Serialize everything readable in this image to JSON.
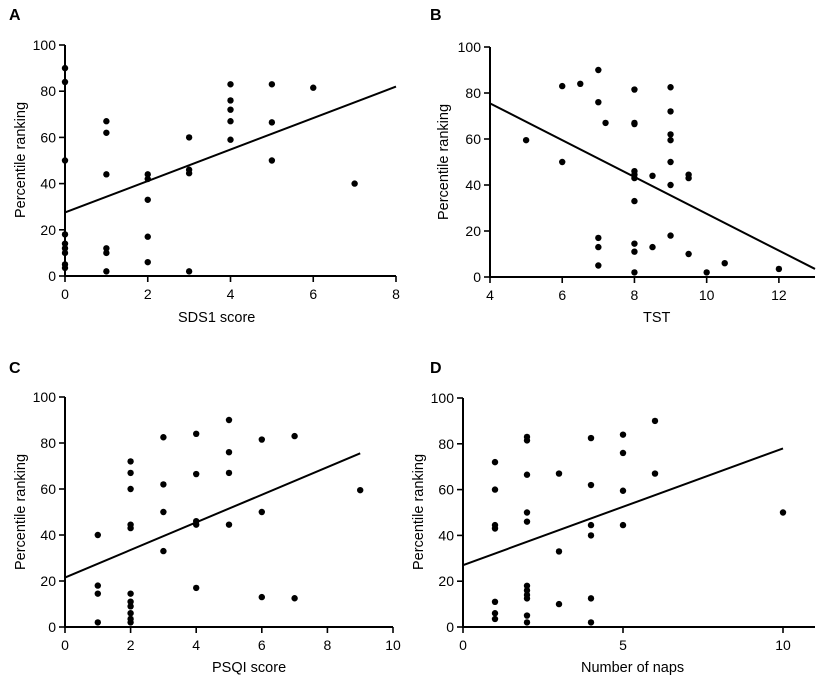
{
  "colors": {
    "ink": "#000000",
    "background": "#ffffff"
  },
  "chart_data": [
    {
      "type": "scatter",
      "panel": "A",
      "xlabel": "SDS1 score",
      "ylabel": "Percentile ranking",
      "xlim": [
        0,
        8
      ],
      "ylim": [
        0,
        100
      ],
      "xticks": [
        0,
        2,
        4,
        6,
        8
      ],
      "yticks": [
        0,
        20,
        40,
        60,
        80,
        100
      ],
      "grid": false,
      "trendline": {
        "x": [
          0,
          8
        ],
        "y": [
          27.5,
          82
        ]
      },
      "points": [
        [
          0,
          90
        ],
        [
          0,
          84
        ],
        [
          0,
          50
        ],
        [
          0,
          18
        ],
        [
          0,
          14
        ],
        [
          0,
          12
        ],
        [
          0,
          10
        ],
        [
          0,
          5
        ],
        [
          0,
          3.5
        ],
        [
          1,
          67
        ],
        [
          1,
          62
        ],
        [
          1,
          44
        ],
        [
          1,
          12
        ],
        [
          1,
          10
        ],
        [
          1,
          2
        ],
        [
          2,
          44
        ],
        [
          2,
          42
        ],
        [
          2,
          33
        ],
        [
          2,
          17
        ],
        [
          2,
          6
        ],
        [
          3,
          60
        ],
        [
          3,
          46
        ],
        [
          3,
          44.5
        ],
        [
          3,
          2
        ],
        [
          4,
          83
        ],
        [
          4,
          76
        ],
        [
          4,
          72
        ],
        [
          4,
          67
        ],
        [
          4,
          59
        ],
        [
          5,
          83
        ],
        [
          5,
          66.5
        ],
        [
          5,
          50
        ],
        [
          6,
          81.5
        ],
        [
          7,
          40
        ]
      ]
    },
    {
      "type": "scatter",
      "panel": "B",
      "xlabel": "TST",
      "ylabel": "Percentile ranking",
      "xlim": [
        4,
        13
      ],
      "ylim": [
        0,
        100
      ],
      "xticks": [
        4,
        6,
        8,
        10,
        12
      ],
      "yticks": [
        0,
        20,
        40,
        60,
        80,
        100
      ],
      "grid": false,
      "trendline": {
        "x": [
          4,
          13
        ],
        "y": [
          75.5,
          3.5
        ]
      },
      "points": [
        [
          5,
          59.5
        ],
        [
          6,
          83
        ],
        [
          6,
          50
        ],
        [
          6.5,
          84
        ],
        [
          7,
          90
        ],
        [
          7,
          76
        ],
        [
          7.2,
          67
        ],
        [
          7,
          17
        ],
        [
          7,
          13
        ],
        [
          7,
          5
        ],
        [
          8,
          81.5
        ],
        [
          8,
          67
        ],
        [
          8,
          66.5
        ],
        [
          8,
          46
        ],
        [
          8,
          44.5
        ],
        [
          8,
          43
        ],
        [
          8,
          33
        ],
        [
          8,
          14.5
        ],
        [
          8,
          11
        ],
        [
          8,
          2
        ],
        [
          8.5,
          44
        ],
        [
          8.5,
          13
        ],
        [
          9,
          82.5
        ],
        [
          9,
          72
        ],
        [
          9,
          62
        ],
        [
          9,
          59.5
        ],
        [
          9,
          50
        ],
        [
          9,
          40
        ],
        [
          9,
          18
        ],
        [
          9.5,
          44.5
        ],
        [
          9.5,
          43
        ],
        [
          9.5,
          10
        ],
        [
          10,
          2
        ],
        [
          10.5,
          6
        ],
        [
          12,
          3.5
        ]
      ]
    },
    {
      "type": "scatter",
      "panel": "C",
      "xlabel": "PSQI score",
      "ylabel": "Percentile ranking",
      "xlim": [
        0,
        10
      ],
      "ylim": [
        0,
        100
      ],
      "xticks": [
        0,
        2,
        4,
        6,
        8,
        10
      ],
      "yticks": [
        0,
        20,
        40,
        60,
        80,
        100
      ],
      "grid": false,
      "trendline": {
        "x": [
          0,
          9
        ],
        "y": [
          21.5,
          75.5
        ]
      },
      "points": [
        [
          1,
          40
        ],
        [
          1,
          18
        ],
        [
          1,
          14.5
        ],
        [
          1,
          2
        ],
        [
          2,
          72
        ],
        [
          2,
          67
        ],
        [
          2,
          60
        ],
        [
          2,
          44.5
        ],
        [
          2,
          43
        ],
        [
          2,
          14.5
        ],
        [
          2,
          11
        ],
        [
          2,
          9
        ],
        [
          2,
          6
        ],
        [
          2,
          3.5
        ],
        [
          2,
          2
        ],
        [
          3,
          82.5
        ],
        [
          3,
          62
        ],
        [
          3,
          50
        ],
        [
          3,
          33
        ],
        [
          4,
          84
        ],
        [
          4,
          66.5
        ],
        [
          4,
          46
        ],
        [
          4,
          44.5
        ],
        [
          4,
          17
        ],
        [
          5,
          90
        ],
        [
          5,
          76
        ],
        [
          5,
          67
        ],
        [
          5,
          44.5
        ],
        [
          6,
          81.5
        ],
        [
          6,
          50
        ],
        [
          6,
          13
        ],
        [
          7,
          83
        ],
        [
          7,
          12.5
        ],
        [
          9,
          59.5
        ]
      ]
    },
    {
      "type": "scatter",
      "panel": "D",
      "xlabel": "Number of naps",
      "ylabel": "Percentile ranking",
      "xlim": [
        0,
        11
      ],
      "ylim": [
        0,
        100
      ],
      "xticks": [
        0,
        5,
        10
      ],
      "yticks": [
        0,
        20,
        40,
        60,
        80,
        100
      ],
      "grid": false,
      "trendline": {
        "x": [
          0,
          10
        ],
        "y": [
          27,
          78
        ]
      },
      "points": [
        [
          1,
          72
        ],
        [
          1,
          60
        ],
        [
          1,
          44.5
        ],
        [
          1,
          43
        ],
        [
          1,
          11
        ],
        [
          1,
          6
        ],
        [
          1,
          3.5
        ],
        [
          2,
          83
        ],
        [
          2,
          81.5
        ],
        [
          2,
          66.5
        ],
        [
          2,
          50
        ],
        [
          2,
          46
        ],
        [
          2,
          18
        ],
        [
          2,
          16
        ],
        [
          2,
          14
        ],
        [
          2,
          12.5
        ],
        [
          2,
          5
        ],
        [
          2,
          2
        ],
        [
          3,
          67
        ],
        [
          3,
          33
        ],
        [
          3,
          10
        ],
        [
          4,
          82.5
        ],
        [
          4,
          62
        ],
        [
          4,
          44.5
        ],
        [
          4,
          40
        ],
        [
          4,
          12.5
        ],
        [
          4,
          2
        ],
        [
          5,
          84
        ],
        [
          5,
          76
        ],
        [
          5,
          59.5
        ],
        [
          5,
          44.5
        ],
        [
          6,
          90
        ],
        [
          6,
          67
        ],
        [
          10,
          50
        ]
      ]
    }
  ]
}
